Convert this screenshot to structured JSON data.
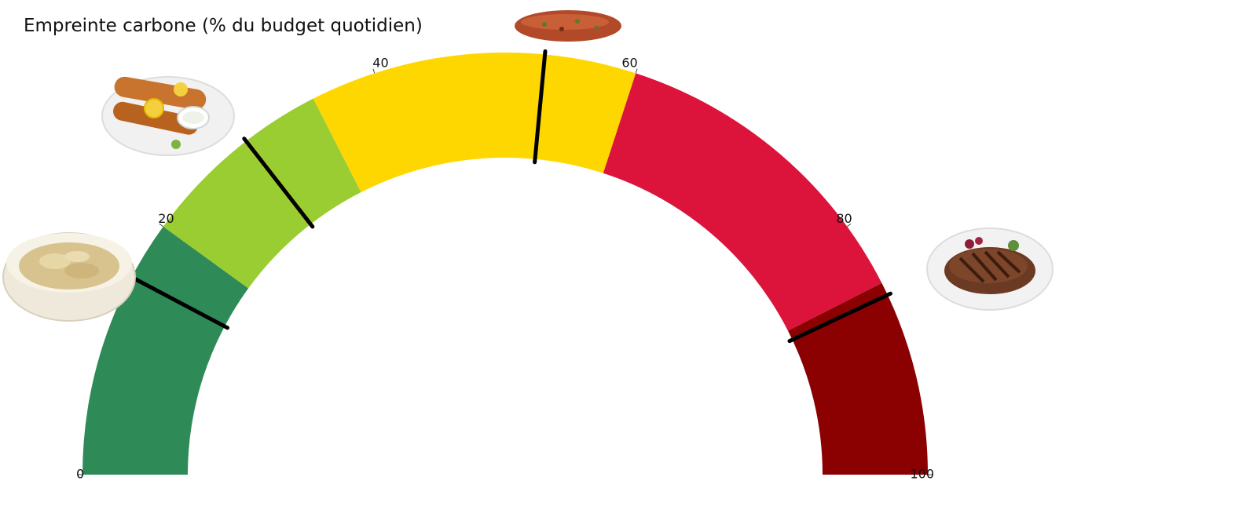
{
  "chart_data": {
    "type": "gauge",
    "title": "Empreinte carbone (% du budget quotidien)",
    "scale": [
      0,
      100
    ],
    "ticks": [
      0,
      20,
      40,
      60,
      80,
      100
    ],
    "bands": [
      {
        "from": 0,
        "to": 20,
        "color": "#2e8b57"
      },
      {
        "from": 20,
        "to": 35,
        "color": "#9acd32"
      },
      {
        "from": 35,
        "to": 60,
        "color": "#ffd700"
      },
      {
        "from": 60,
        "to": 85,
        "color": "#dc143c"
      },
      {
        "from": 85,
        "to": 100,
        "color": "#8b0000"
      }
    ],
    "markers": [
      {
        "item": "risotto",
        "value": 15.5
      },
      {
        "item": "fried fish fillets",
        "value": 29
      },
      {
        "item": "sausage",
        "value": 53
      },
      {
        "item": "steak",
        "value": 86
      }
    ],
    "marker_color": "#000000"
  }
}
